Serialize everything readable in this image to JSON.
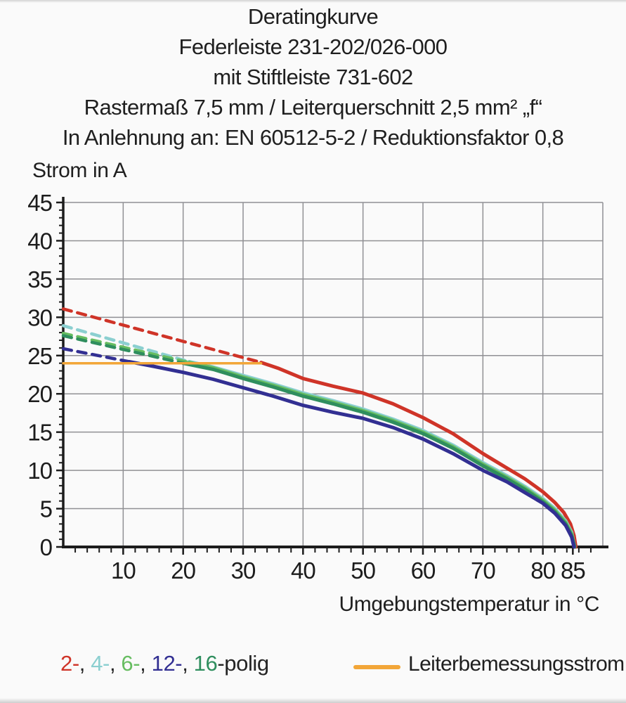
{
  "title_lines": [
    "Deratingkurve",
    "Federleiste 231-202/026-000",
    "mit Stiftleiste 731-602",
    "Rastermaß 7,5 mm / Leiterquerschnitt 2,5 mm² „f“",
    "In Anlehnung an: EN 60512-5-2 / Reduktionsfaktor 0,8"
  ],
  "chart_data": {
    "type": "line",
    "title": "Deratingkurve",
    "xlabel": "Umgebungstemperatur in °C",
    "ylabel": "Strom in A",
    "xlim": [
      0,
      90
    ],
    "ylim": [
      0,
      45
    ],
    "x_ticks": [
      10,
      20,
      30,
      40,
      50,
      60,
      70,
      80,
      85
    ],
    "y_ticks": [
      0,
      5,
      10,
      15,
      20,
      25,
      30,
      35,
      40,
      45
    ],
    "x_grid_step": 10,
    "y_grid_step": 5,
    "x_minor_step": 2,
    "y_minor_step": 1,
    "grid": true,
    "grid_color": "#909094",
    "axis_color": "#1c1c1c",
    "legend_position": "bottom",
    "series": [
      {
        "name": "2-polig",
        "color": "#cf3428",
        "style": "dashed",
        "width": 4.5,
        "points": [
          [
            0,
            31.1
          ],
          [
            33,
            24.1
          ]
        ]
      },
      {
        "name": "4-polig",
        "color": "#8bcfd0",
        "style": "dashed",
        "width": 4.5,
        "points": [
          [
            0,
            28.9
          ],
          [
            21,
            24.2
          ]
        ]
      },
      {
        "name": "6-polig",
        "color": "#67bd61",
        "style": "dashed",
        "width": 4.5,
        "points": [
          [
            0,
            27.9
          ],
          [
            21,
            24.1
          ]
        ]
      },
      {
        "name": "16-polig",
        "color": "#2f8e5e",
        "style": "dashed",
        "width": 4.5,
        "points": [
          [
            0,
            27.6
          ],
          [
            20,
            24.0
          ]
        ]
      },
      {
        "name": "12-polig",
        "color": "#322f92",
        "style": "dashed",
        "width": 4.5,
        "points": [
          [
            0,
            25.9
          ],
          [
            11,
            24.2
          ]
        ]
      },
      {
        "name": "2-polig",
        "color": "#cf3428",
        "style": "solid",
        "width": 5,
        "points": [
          [
            33,
            24.1
          ],
          [
            36,
            23.3
          ],
          [
            40,
            22.0
          ],
          [
            45,
            21.0
          ],
          [
            50,
            20.1
          ],
          [
            55,
            18.7
          ],
          [
            60,
            16.9
          ],
          [
            65,
            14.8
          ],
          [
            70,
            12.2
          ],
          [
            74,
            10.3
          ],
          [
            77,
            8.9
          ],
          [
            80,
            7.2
          ],
          [
            82,
            5.8
          ],
          [
            83.5,
            4.5
          ],
          [
            84.6,
            3.0
          ],
          [
            85.2,
            1.5
          ],
          [
            85.5,
            0
          ]
        ]
      },
      {
        "name": "4-polig",
        "color": "#8bcfd0",
        "style": "solid",
        "width": 5,
        "points": [
          [
            21,
            24.2
          ],
          [
            25,
            23.5
          ],
          [
            30,
            22.4
          ],
          [
            35,
            21.3
          ],
          [
            40,
            20.1
          ],
          [
            45,
            19.1
          ],
          [
            50,
            18.0
          ],
          [
            55,
            16.7
          ],
          [
            60,
            15.2
          ],
          [
            65,
            13.3
          ],
          [
            70,
            11.0
          ],
          [
            74,
            9.3
          ],
          [
            77,
            7.9
          ],
          [
            80,
            6.3
          ],
          [
            82,
            5.0
          ],
          [
            83.8,
            3.4
          ],
          [
            84.8,
            1.9
          ],
          [
            85.3,
            0
          ]
        ]
      },
      {
        "name": "6-polig",
        "color": "#67bd61",
        "style": "solid",
        "width": 5,
        "points": [
          [
            21,
            24.1
          ],
          [
            25,
            23.4
          ],
          [
            30,
            22.2
          ],
          [
            35,
            21.1
          ],
          [
            40,
            19.9
          ],
          [
            45,
            18.9
          ],
          [
            50,
            17.8
          ],
          [
            55,
            16.5
          ],
          [
            60,
            15.0
          ],
          [
            65,
            13.1
          ],
          [
            70,
            10.8
          ],
          [
            74,
            9.1
          ],
          [
            77,
            7.7
          ],
          [
            80,
            6.1
          ],
          [
            82,
            4.8
          ],
          [
            83.8,
            3.2
          ],
          [
            84.8,
            1.7
          ],
          [
            85.3,
            0
          ]
        ]
      },
      {
        "name": "16-polig",
        "color": "#2f8e5e",
        "style": "solid",
        "width": 5,
        "points": [
          [
            20,
            24.0
          ],
          [
            25,
            23.2
          ],
          [
            30,
            22.0
          ],
          [
            35,
            20.9
          ],
          [
            40,
            19.7
          ],
          [
            45,
            18.7
          ],
          [
            50,
            17.6
          ],
          [
            55,
            16.3
          ],
          [
            60,
            14.8
          ],
          [
            65,
            12.9
          ],
          [
            70,
            10.6
          ],
          [
            74,
            8.9
          ],
          [
            77,
            7.5
          ],
          [
            80,
            5.9
          ],
          [
            82,
            4.6
          ],
          [
            83.8,
            3.0
          ],
          [
            84.8,
            1.5
          ],
          [
            85.3,
            0
          ]
        ]
      },
      {
        "name": "12-polig",
        "color": "#322f92",
        "style": "solid",
        "width": 5,
        "points": [
          [
            11,
            24.2
          ],
          [
            15,
            23.6
          ],
          [
            20,
            22.8
          ],
          [
            25,
            21.9
          ],
          [
            30,
            20.8
          ],
          [
            35,
            19.7
          ],
          [
            40,
            18.5
          ],
          [
            45,
            17.6
          ],
          [
            50,
            16.8
          ],
          [
            55,
            15.6
          ],
          [
            60,
            14.1
          ],
          [
            65,
            12.2
          ],
          [
            70,
            10.0
          ],
          [
            74,
            8.5
          ],
          [
            77,
            7.1
          ],
          [
            80,
            5.7
          ],
          [
            82,
            4.4
          ],
          [
            83.8,
            2.8
          ],
          [
            84.8,
            1.3
          ],
          [
            85.2,
            0
          ]
        ]
      },
      {
        "name": "Leiterbemessungsstrom",
        "color": "#f2a638",
        "style": "solid",
        "width": 3.5,
        "points": [
          [
            0,
            24.0
          ],
          [
            33,
            24.0
          ]
        ]
      }
    ]
  },
  "legend": {
    "poles_parts": [
      {
        "text": "2-",
        "color": "#cf3428"
      },
      {
        "text": ", ",
        "color": "#242424"
      },
      {
        "text": "4-",
        "color": "#8bcfd0"
      },
      {
        "text": ", ",
        "color": "#242424"
      },
      {
        "text": "6-",
        "color": "#67bd61"
      },
      {
        "text": ", ",
        "color": "#242424"
      },
      {
        "text": "12-",
        "color": "#322f92"
      },
      {
        "text": ", ",
        "color": "#242424"
      },
      {
        "text": "16",
        "color": "#2f8e5e"
      },
      {
        "text": "-polig",
        "color": "#242424"
      }
    ],
    "rated_current": {
      "swatch_color": "#f2a638",
      "label": "Leiterbemessungsstrom"
    }
  }
}
